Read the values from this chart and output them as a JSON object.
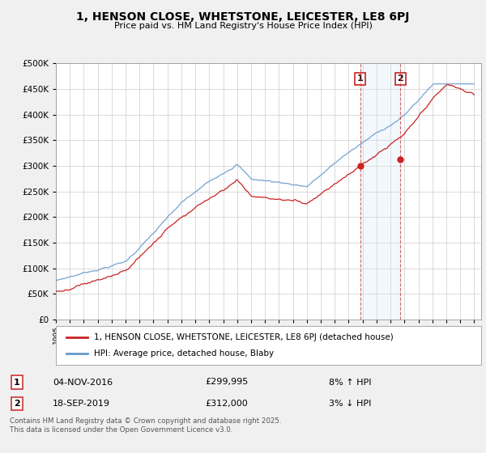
{
  "title": "1, HENSON CLOSE, WHETSTONE, LEICESTER, LE8 6PJ",
  "subtitle": "Price paid vs. HM Land Registry's House Price Index (HPI)",
  "ylim": [
    0,
    500000
  ],
  "yticks": [
    0,
    50000,
    100000,
    150000,
    200000,
    250000,
    300000,
    350000,
    400000,
    450000,
    500000
  ],
  "legend_label1": "1, HENSON CLOSE, WHETSTONE, LEICESTER, LE8 6PJ (detached house)",
  "legend_label2": "HPI: Average price, detached house, Blaby",
  "transaction1_date": "04-NOV-2016",
  "transaction1_price": "£299,995",
  "transaction1_hpi": "8% ↑ HPI",
  "transaction2_date": "18-SEP-2019",
  "transaction2_price": "£312,000",
  "transaction2_hpi": "3% ↓ HPI",
  "footer": "Contains HM Land Registry data © Crown copyright and database right 2025.\nThis data is licensed under the Open Government Licence v3.0.",
  "line1_color": "#cc2222",
  "line2_color": "#6699cc",
  "background_color": "#f0f0f0",
  "plot_bg_color": "#ffffff",
  "shade_color": "#d0e4f7",
  "vline_color": "#cc4444",
  "t1_year": 2016.833,
  "t2_year": 2019.708,
  "t1_price": 299995,
  "t2_price": 312000,
  "xmin": 1995,
  "xmax": 2025.5
}
